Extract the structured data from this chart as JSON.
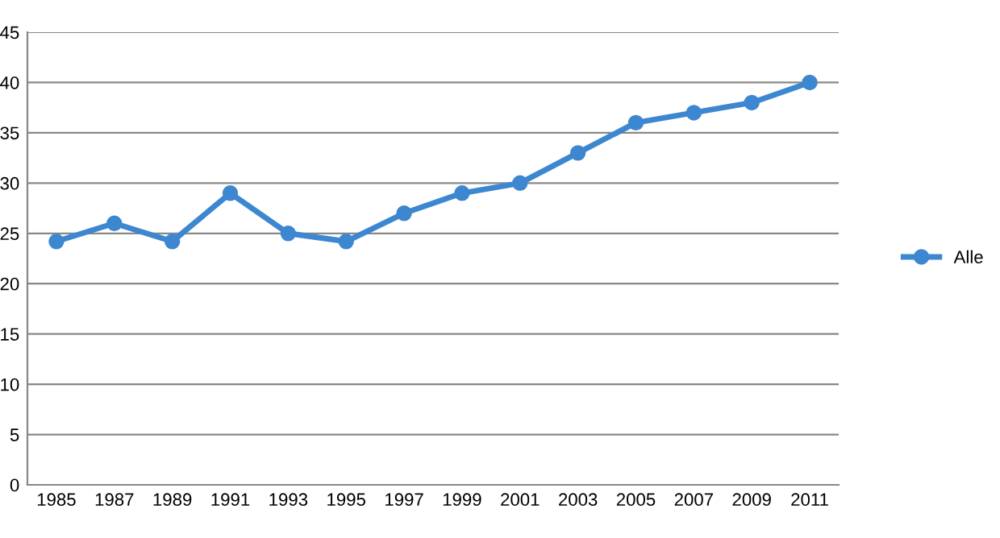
{
  "chart_data": {
    "type": "line",
    "categories": [
      "1985",
      "1987",
      "1989",
      "1991",
      "1993",
      "1995",
      "1997",
      "1999",
      "2001",
      "2003",
      "2005",
      "2007",
      "2009",
      "2011"
    ],
    "series": [
      {
        "name": "Alle",
        "color": "#3d87d0",
        "values": [
          24.2,
          26,
          24.2,
          29,
          25,
          24.2,
          27,
          29,
          30,
          33,
          36,
          37,
          38,
          40
        ]
      }
    ],
    "ylim": [
      0,
      45
    ],
    "yticks": [
      0,
      5,
      10,
      15,
      20,
      25,
      30,
      35,
      40,
      45
    ],
    "grid": "y",
    "legend": "right",
    "marker": "circle",
    "line_style": "solid"
  }
}
